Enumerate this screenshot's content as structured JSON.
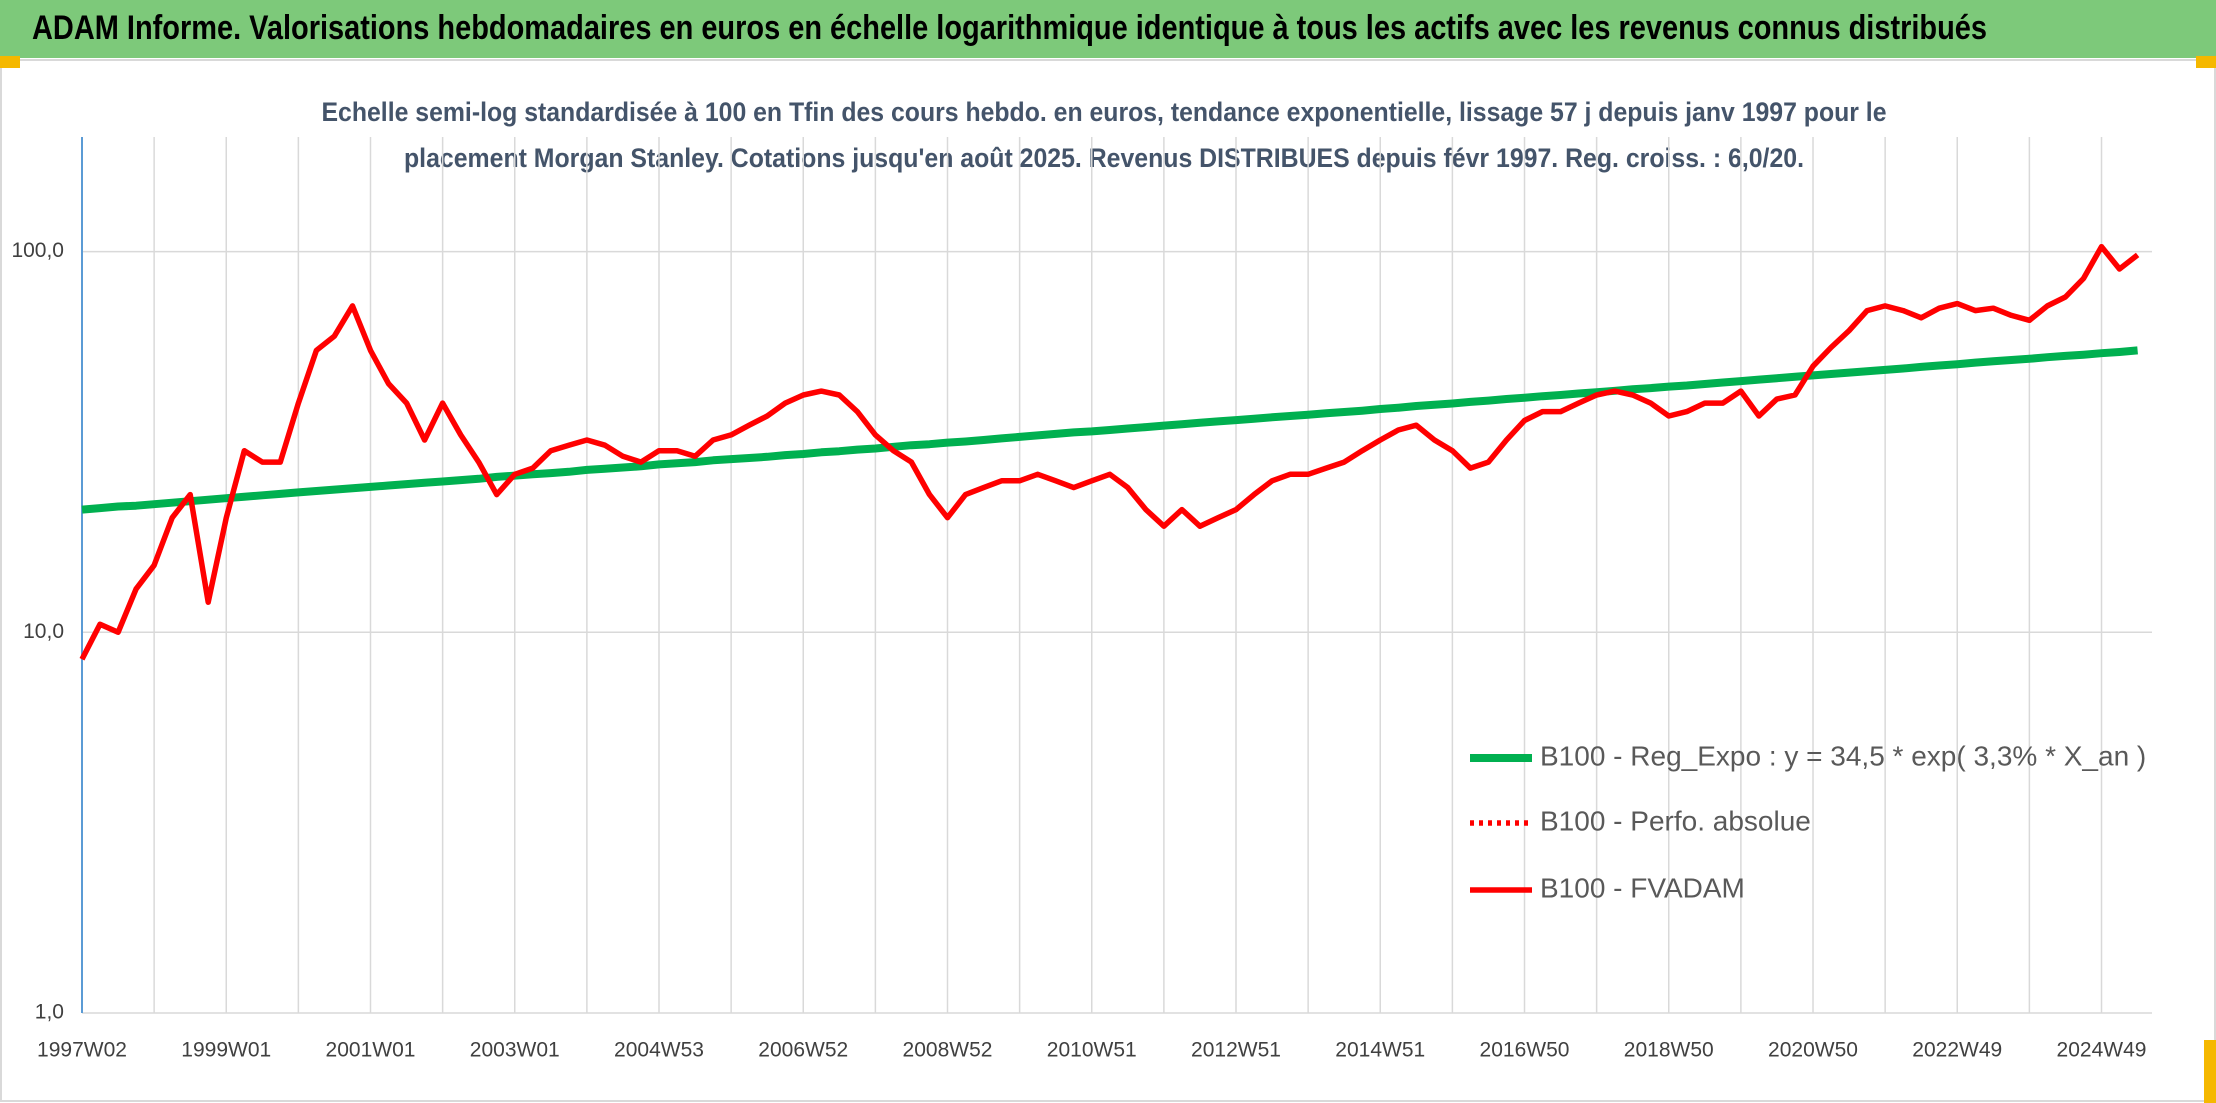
{
  "header": {
    "title": "ADAM Informe. Valorisations hebdomadaires en euros en échelle logarithmique identique à tous les actifs avec les revenus connus distribués"
  },
  "chart_data": {
    "type": "line",
    "subtitle": [
      "Echelle semi-log standardisée à 100 en Tfin des cours hebdo. en euros, tendance exponentielle, lissage 57 j depuis janv 1997 pour le",
      "placement Morgan Stanley. Cotations jusqu'en août 2025. Revenus DISTRIBUES depuis févr 1997. Reg. croiss. : 6,0/20."
    ],
    "categories": [
      "1997W02",
      null,
      null,
      null,
      null,
      null,
      null,
      null,
      "1999W01",
      null,
      null,
      null,
      null,
      null,
      null,
      null,
      "2001W01",
      null,
      null,
      null,
      null,
      null,
      null,
      null,
      "2003W01",
      null,
      null,
      null,
      null,
      null,
      null,
      null,
      "2004W53",
      null,
      null,
      null,
      null,
      null,
      null,
      null,
      "2006W52",
      null,
      null,
      null,
      null,
      null,
      null,
      null,
      "2008W52",
      null,
      null,
      null,
      null,
      null,
      null,
      null,
      "2010W51",
      null,
      null,
      null,
      null,
      null,
      null,
      null,
      "2012W51",
      null,
      null,
      null,
      null,
      null,
      null,
      null,
      "2014W51",
      null,
      null,
      null,
      null,
      null,
      null,
      null,
      "2016W50",
      null,
      null,
      null,
      null,
      null,
      null,
      null,
      "2018W50",
      null,
      null,
      null,
      null,
      null,
      null,
      null,
      "2020W50",
      null,
      null,
      null,
      null,
      null,
      null,
      null,
      "2022W49",
      null,
      null,
      null,
      null,
      null,
      null,
      null,
      "2024W49",
      null,
      null
    ],
    "series": [
      {
        "name": "B100 - Reg_Expo : y = 34,5 * exp( 3,3% *  X_an )",
        "color": "#00b050",
        "style": "solid",
        "values": [
          21.0,
          21.2,
          21.4,
          21.5,
          21.7,
          21.9,
          22.1,
          22.3,
          22.5,
          22.7,
          22.9,
          23.1,
          23.3,
          23.5,
          23.7,
          23.9,
          24.1,
          24.3,
          24.5,
          24.7,
          24.9,
          25.1,
          25.3,
          25.6,
          25.8,
          26.0,
          26.2,
          26.4,
          26.7,
          26.9,
          27.1,
          27.3,
          27.6,
          27.8,
          28.0,
          28.3,
          28.5,
          28.7,
          28.9,
          29.2,
          29.4,
          29.7,
          29.9,
          30.2,
          30.4,
          30.7,
          31.0,
          31.2,
          31.5,
          31.7,
          32.0,
          32.3,
          32.6,
          32.9,
          33.2,
          33.5,
          33.7,
          34.0,
          34.3,
          34.6,
          34.9,
          35.2,
          35.5,
          35.8,
          36.1,
          36.4,
          36.7,
          37.0,
          37.3,
          37.6,
          37.9,
          38.2,
          38.6,
          38.9,
          39.3,
          39.6,
          39.9,
          40.3,
          40.6,
          41.0,
          41.3,
          41.7,
          42.0,
          42.4,
          42.7,
          43.1,
          43.5,
          43.8,
          44.2,
          44.5,
          44.9,
          45.3,
          45.7,
          46.1,
          46.5,
          46.9,
          47.3,
          47.7,
          48.1,
          48.5,
          48.9,
          49.3,
          49.8,
          50.2,
          50.6,
          51.1,
          51.5,
          51.9,
          52.3,
          52.8,
          53.2,
          53.6,
          54.1,
          54.5,
          55.0
        ]
      },
      {
        "name": "B100 - Perfo. absolue",
        "color": "#ff0000",
        "style": "dotted"
      },
      {
        "name": "B100 - FVADAM",
        "color": "#ff0000",
        "style": "solid",
        "values": [
          8.5,
          10.5,
          10.0,
          13,
          15,
          20,
          23,
          12,
          20,
          30,
          28,
          28,
          40,
          55,
          60,
          72,
          55,
          45,
          40,
          32,
          40,
          33,
          28,
          23,
          26,
          27,
          30,
          31,
          32,
          31,
          29,
          28,
          30,
          30,
          29,
          32,
          33,
          35,
          37,
          40,
          42,
          43,
          42,
          38,
          33,
          30,
          28,
          23,
          20,
          23,
          24,
          25,
          25,
          26,
          25,
          24,
          25,
          26,
          24,
          21,
          19,
          21,
          19,
          20,
          21,
          23,
          25,
          26,
          26,
          27,
          28,
          30,
          32,
          34,
          35,
          32,
          30,
          27,
          28,
          32,
          36,
          38,
          38,
          40,
          42,
          43,
          42,
          40,
          37,
          38,
          40,
          40,
          43,
          37,
          41,
          42,
          50,
          56,
          62,
          70,
          72,
          70,
          67,
          71,
          73,
          70,
          71,
          68,
          66,
          72,
          76,
          85,
          103,
          90,
          98
        ]
      }
    ],
    "ylim": [
      1,
      200
    ],
    "log": true,
    "yticks": [
      {
        "value": 1,
        "label": "1,0"
      },
      {
        "value": 10,
        "label": "10,0"
      },
      {
        "value": 100,
        "label": "100,0"
      }
    ],
    "grid": true,
    "legend": "lower right"
  }
}
